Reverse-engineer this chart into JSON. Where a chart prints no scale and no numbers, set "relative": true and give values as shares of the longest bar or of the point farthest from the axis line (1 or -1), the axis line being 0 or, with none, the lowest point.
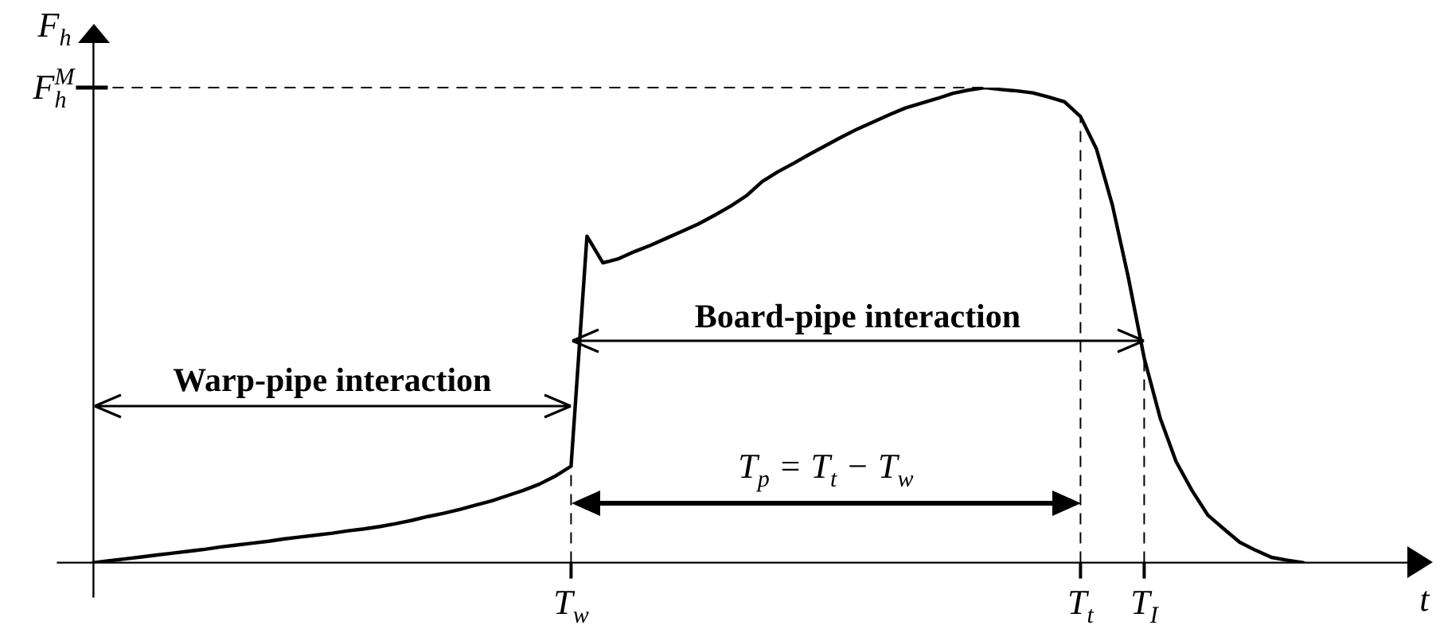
{
  "chart_data": {
    "type": "line",
    "xlabel": "t",
    "ylabel": "F$_{h}$",
    "relative": true,
    "marker": "none",
    "categories": [
      null,
      null,
      null,
      null,
      null,
      null,
      null,
      null,
      null,
      null,
      null,
      null,
      null,
      null,
      null,
      null,
      null,
      null,
      null,
      null,
      null,
      null,
      null,
      null,
      null,
      null,
      null,
      null,
      null,
      null,
      "T$_{w}$",
      null,
      null,
      null,
      null,
      null,
      null,
      null,
      null,
      null,
      null,
      null,
      null,
      null,
      null,
      null,
      null,
      null,
      null,
      null,
      null,
      null,
      null,
      null,
      null,
      null,
      null,
      null,
      null,
      null,
      null,
      null,
      "T$_{t}$",
      null,
      null,
      null,
      "T$_{I}$",
      null,
      null,
      null,
      null,
      null,
      null,
      null,
      null,
      null,
      null
    ],
    "series": [
      {
        "color": "#000000",
        "values": [
          0,
          0.004,
          0.008,
          0.012,
          0.016,
          0.02,
          0.024,
          0.028,
          0.033,
          0.037,
          0.041,
          0.045,
          0.05,
          0.054,
          0.058,
          0.062,
          0.067,
          0.071,
          0.076,
          0.082,
          0.089,
          0.097,
          0.104,
          0.112,
          0.121,
          0.13,
          0.141,
          0.152,
          0.165,
          0.182,
          0.203,
          0.687,
          0.631,
          0.64,
          0.655,
          0.668,
          0.683,
          0.698,
          0.713,
          0.731,
          0.75,
          0.772,
          0.802,
          0.823,
          0.841,
          0.86,
          0.878,
          0.896,
          0.913,
          0.928,
          0.943,
          0.957,
          0.967,
          0.977,
          0.988,
          0.995,
          1,
          0.996,
          0.993,
          0.989,
          0.98,
          0.97,
          0.939,
          0.871,
          0.753,
          0.601,
          0.431,
          0.305,
          0.213,
          0.152,
          0.1,
          0.071,
          0.043,
          0.026,
          0.011,
          0.005,
          0
        ]
      }
    ],
    "ref_lines": [
      {
        "axis": "y",
        "value": 1,
        "label": "F$_{h}$$^{M}$",
        "line_style": "dashed"
      },
      {
        "axis": "x",
        "value": "T$_{w}$",
        "line_style": "dashed"
      },
      {
        "axis": "x",
        "value": "T$_{t}$",
        "line_style": "dashed"
      },
      {
        "axis": "x",
        "value": "T$_{I}$",
        "line_style": "dashed"
      }
    ],
    "annotations": [
      "Warp-pipe interaction",
      "Board-pipe interaction",
      "T$_{p}$ = T$_{t}$ − T$_{w}$"
    ]
  }
}
